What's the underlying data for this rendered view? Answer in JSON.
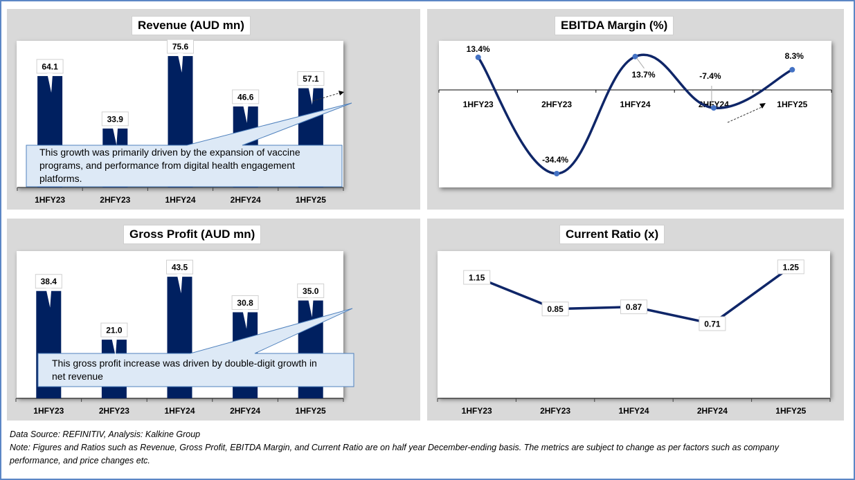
{
  "colors": {
    "frame_border": "#5b86c5",
    "panel_bg": "#d9d9d9",
    "bar_fill": "#002060",
    "line_color": "#0f2668",
    "marker_color": "#4472c4",
    "callout_fill": "#dde9f6",
    "callout_border": "#4f81bd"
  },
  "chart_data": [
    {
      "id": "revenue",
      "type": "bar",
      "title": "Revenue (AUD mn)",
      "categories": [
        "1HFY23",
        "2HFY23",
        "1HFY24",
        "2HFY24",
        "1HFY25"
      ],
      "values": [
        64.1,
        33.9,
        75.6,
        46.6,
        57.1
      ],
      "labels": [
        "64.1",
        "33.9",
        "75.6",
        "46.6",
        "57.1"
      ],
      "ylim": [
        0,
        80
      ],
      "xlabel": "",
      "ylabel": "",
      "grid": false,
      "callout": "This growth was primarily driven by the expansion of vaccine programs, and performance from digital health engagement platforms.",
      "callout_lines": [
        "This growth was primarily driven by the expansion of vaccine",
        "programs, and performance from digital health engagement",
        "platforms."
      ],
      "annotation": "dashed arrow from 2HFY24 to 1HFY25"
    },
    {
      "id": "ebitda",
      "type": "line",
      "title": "EBITDA Margin (%)",
      "categories": [
        "1HFY23",
        "2HFY23",
        "1HFY24",
        "2HFY24",
        "1HFY25"
      ],
      "values": [
        13.4,
        -34.4,
        13.7,
        -7.4,
        8.3
      ],
      "labels": [
        "13.4%",
        "-34.4%",
        "13.7%",
        "-7.4%",
        "8.3%"
      ],
      "ylim": [
        -40,
        18
      ],
      "smooth": true,
      "markers": true,
      "xlabel": "",
      "ylabel": "",
      "grid": false,
      "annotation": "dashed arrow pointing toward 1HFY25"
    },
    {
      "id": "gross_profit",
      "type": "bar",
      "title": "Gross Profit (AUD mn)",
      "categories": [
        "1HFY23",
        "2HFY23",
        "1HFY24",
        "2HFY24",
        "1HFY25"
      ],
      "values": [
        38.4,
        21.0,
        43.5,
        30.8,
        35.0
      ],
      "labels": [
        "38.4",
        "21.0",
        "43.5",
        "30.8",
        "35.0"
      ],
      "ylim": [
        0,
        46
      ],
      "xlabel": "",
      "ylabel": "",
      "grid": false,
      "callout": "This gross profit increase was driven by double-digit growth in net  revenue",
      "callout_lines": [
        "This gross profit increase was driven by double-digit growth in",
        "net  revenue"
      ]
    },
    {
      "id": "current_ratio",
      "type": "line",
      "title": "Current Ratio (x)",
      "categories": [
        "1HFY23",
        "2HFY23",
        "1HFY24",
        "2HFY24",
        "1HFY25"
      ],
      "values": [
        1.15,
        0.85,
        0.87,
        0.71,
        1.25
      ],
      "labels": [
        "1.15",
        "0.85",
        "0.87",
        "0.71",
        "1.25"
      ],
      "ylim": [
        0,
        1.4
      ],
      "smooth": false,
      "markers": false,
      "xlabel": "",
      "ylabel": "",
      "grid": false
    }
  ],
  "footer": {
    "source": "Data Source: REFINITIV, Analysis: Kalkine Group",
    "note_line1": "Note: Figures and Ratios such as Revenue, Gross Profit, EBITDA Margin, and Current Ratio are on half year December-ending basis. The metrics are subject to change as per factors such as company",
    "note_line2": "performance, and price changes etc."
  }
}
